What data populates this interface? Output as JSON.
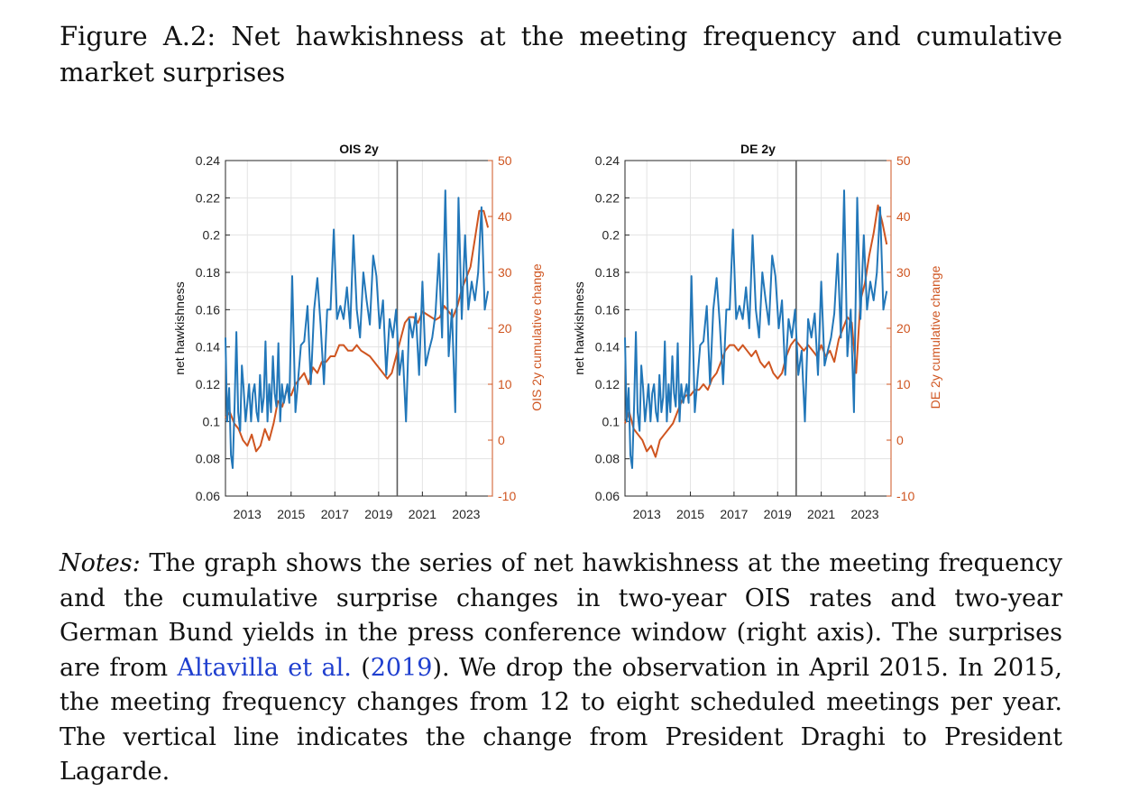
{
  "caption": {
    "text": "Figure A.2: Net hawkishness at the meeting frequency and cumulative market surprises"
  },
  "notes": {
    "label": "Notes:",
    "text1": "The graph shows the series of net hawkishness at the meeting frequency and the cumulative surprise changes in two-year OIS rates and two-year German Bund yields in the press conference window (right axis). The surprises are from",
    "cite_author": "Altavilla et al.",
    "cite_open": " (",
    "cite_year": "2019",
    "cite_close": ").",
    "text2": "We drop the observation in April 2015. In 2015, the meeting frequency changes from 12 to eight scheduled meetings per year. The vertical line indicates the change from President Draghi to President Lagarde."
  },
  "colors": {
    "blue": "#2277b9",
    "orange": "#cf5520",
    "grid": "#e3e3e3",
    "vline": "#5a5a5a"
  },
  "chart_data": [
    {
      "type": "line",
      "title": "OIS 2y",
      "ylabel_left": "net hawkishness",
      "ylabel_right": "OIS 2y cumulative change",
      "xlim": [
        2012,
        2024.2
      ],
      "ylim_left": [
        0.06,
        0.24
      ],
      "ylim_right": [
        -10,
        50
      ],
      "xticks": [
        2013,
        2015,
        2017,
        2019,
        2021,
        2023
      ],
      "yticks_left": [
        "0.06",
        "0.08",
        "0.1",
        "0.12",
        "0.14",
        "0.16",
        "0.18",
        "0.2",
        "0.22",
        "0.24"
      ],
      "yticks_right": [
        "-10",
        "0",
        "10",
        "20",
        "30",
        "40",
        "50"
      ],
      "grid": true,
      "vline_x": 2019.85,
      "series": [
        {
          "axis": "left",
          "x": [
            2012.0,
            2012.08,
            2012.17,
            2012.25,
            2012.33,
            2012.42,
            2012.5,
            2012.58,
            2012.67,
            2012.75,
            2012.83,
            2012.92,
            2013.0,
            2013.08,
            2013.17,
            2013.25,
            2013.33,
            2013.42,
            2013.5,
            2013.58,
            2013.67,
            2013.75,
            2013.83,
            2013.92,
            2014.0,
            2014.08,
            2014.17,
            2014.25,
            2014.33,
            2014.42,
            2014.5,
            2014.58,
            2014.67,
            2014.75,
            2014.83,
            2014.92,
            2015.05,
            2015.2,
            2015.45,
            2015.6,
            2015.75,
            2015.9,
            2016.05,
            2016.2,
            2016.35,
            2016.5,
            2016.65,
            2016.8,
            2016.95,
            2017.1,
            2017.25,
            2017.4,
            2017.55,
            2017.7,
            2017.85,
            2018.0,
            2018.15,
            2018.3,
            2018.45,
            2018.6,
            2018.75,
            2018.9,
            2019.05,
            2019.2,
            2019.35,
            2019.5,
            2019.65,
            2019.8,
            2019.95,
            2020.1,
            2020.25,
            2020.4,
            2020.55,
            2020.7,
            2020.85,
            2021.0,
            2021.15,
            2021.3,
            2021.45,
            2021.6,
            2021.75,
            2021.9,
            2022.05,
            2022.2,
            2022.35,
            2022.5,
            2022.65,
            2022.8,
            2022.95,
            2023.1,
            2023.25,
            2023.4,
            2023.55,
            2023.7,
            2023.85,
            2024.0
          ],
          "y": [
            0.145,
            0.1,
            0.118,
            0.082,
            0.075,
            0.11,
            0.148,
            0.105,
            0.095,
            0.13,
            0.118,
            0.1,
            0.11,
            0.12,
            0.1,
            0.115,
            0.12,
            0.105,
            0.1,
            0.125,
            0.105,
            0.113,
            0.143,
            0.1,
            0.12,
            0.105,
            0.135,
            0.115,
            0.108,
            0.142,
            0.1,
            0.12,
            0.11,
            0.115,
            0.12,
            0.11,
            0.178,
            0.105,
            0.141,
            0.143,
            0.162,
            0.12,
            0.16,
            0.177,
            0.152,
            0.12,
            0.16,
            0.16,
            0.203,
            0.155,
            0.162,
            0.155,
            0.172,
            0.15,
            0.2,
            0.16,
            0.145,
            0.18,
            0.165,
            0.152,
            0.189,
            0.178,
            0.15,
            0.165,
            0.125,
            0.155,
            0.145,
            0.16,
            0.125,
            0.138,
            0.1,
            0.155,
            0.145,
            0.158,
            0.125,
            0.175,
            0.13,
            0.138,
            0.145,
            0.158,
            0.19,
            0.145,
            0.224,
            0.135,
            0.16,
            0.105,
            0.22,
            0.155,
            0.2,
            0.16,
            0.175,
            0.165,
            0.18,
            0.215,
            0.16,
            0.17
          ]
        },
        {
          "axis": "right",
          "x": [
            2012.0,
            2012.2,
            2012.4,
            2012.6,
            2012.8,
            2013.0,
            2013.2,
            2013.4,
            2013.6,
            2013.8,
            2014.0,
            2014.2,
            2014.4,
            2014.6,
            2014.8,
            2015.0,
            2015.2,
            2015.4,
            2015.6,
            2015.8,
            2016.0,
            2016.2,
            2016.4,
            2016.6,
            2016.8,
            2017.0,
            2017.2,
            2017.4,
            2017.6,
            2017.8,
            2018.0,
            2018.2,
            2018.4,
            2018.6,
            2018.8,
            2019.0,
            2019.2,
            2019.4,
            2019.6,
            2019.8,
            2020.0,
            2020.2,
            2020.4,
            2020.6,
            2020.8,
            2021.0,
            2021.2,
            2021.4,
            2021.6,
            2021.8,
            2022.0,
            2022.2,
            2022.4,
            2022.6,
            2022.8,
            2023.0,
            2023.2,
            2023.4,
            2023.6,
            2023.8,
            2024.0
          ],
          "y": [
            4,
            5,
            3,
            2,
            0,
            -1,
            1,
            -2,
            -1,
            2,
            0,
            3,
            7,
            6,
            9,
            8,
            10,
            11,
            12,
            10,
            13,
            12,
            14,
            14,
            15,
            15,
            17,
            17,
            16,
            16,
            17,
            16,
            15.5,
            15,
            14,
            13,
            12,
            11,
            12,
            15,
            18,
            21,
            22,
            22,
            21,
            23,
            22.5,
            22,
            21.5,
            22,
            24,
            23,
            22,
            24,
            27,
            29,
            31,
            36,
            41,
            41,
            38
          ]
        }
      ]
    },
    {
      "type": "line",
      "title": "DE 2y",
      "ylabel_left": "net hawkishness",
      "ylabel_right": "DE 2y cumulative change",
      "xlim": [
        2012,
        2024.2
      ],
      "ylim_left": [
        0.06,
        0.24
      ],
      "ylim_right": [
        -10,
        50
      ],
      "xticks": [
        2013,
        2015,
        2017,
        2019,
        2021,
        2023
      ],
      "yticks_left": [
        "0.06",
        "0.08",
        "0.1",
        "0.12",
        "0.14",
        "0.16",
        "0.18",
        "0.2",
        "0.22",
        "0.24"
      ],
      "yticks_right": [
        "-10",
        "0",
        "10",
        "20",
        "30",
        "40",
        "50"
      ],
      "grid": true,
      "vline_x": 2019.85,
      "series": [
        {
          "axis": "left",
          "x": [
            2012.0,
            2012.08,
            2012.17,
            2012.25,
            2012.33,
            2012.42,
            2012.5,
            2012.58,
            2012.67,
            2012.75,
            2012.83,
            2012.92,
            2013.0,
            2013.08,
            2013.17,
            2013.25,
            2013.33,
            2013.42,
            2013.5,
            2013.58,
            2013.67,
            2013.75,
            2013.83,
            2013.92,
            2014.0,
            2014.08,
            2014.17,
            2014.25,
            2014.33,
            2014.42,
            2014.5,
            2014.58,
            2014.67,
            2014.75,
            2014.83,
            2014.92,
            2015.05,
            2015.2,
            2015.45,
            2015.6,
            2015.75,
            2015.9,
            2016.05,
            2016.2,
            2016.35,
            2016.5,
            2016.65,
            2016.8,
            2016.95,
            2017.1,
            2017.25,
            2017.4,
            2017.55,
            2017.7,
            2017.85,
            2018.0,
            2018.15,
            2018.3,
            2018.45,
            2018.6,
            2018.75,
            2018.9,
            2019.05,
            2019.2,
            2019.35,
            2019.5,
            2019.65,
            2019.8,
            2019.95,
            2020.1,
            2020.25,
            2020.4,
            2020.55,
            2020.7,
            2020.85,
            2021.0,
            2021.15,
            2021.3,
            2021.45,
            2021.6,
            2021.75,
            2021.9,
            2022.05,
            2022.2,
            2022.35,
            2022.5,
            2022.65,
            2022.8,
            2022.95,
            2023.1,
            2023.25,
            2023.4,
            2023.55,
            2023.7,
            2023.85,
            2024.0
          ],
          "y": [
            0.145,
            0.1,
            0.118,
            0.082,
            0.075,
            0.11,
            0.148,
            0.105,
            0.095,
            0.13,
            0.118,
            0.1,
            0.11,
            0.12,
            0.1,
            0.115,
            0.12,
            0.105,
            0.1,
            0.125,
            0.105,
            0.113,
            0.143,
            0.1,
            0.12,
            0.105,
            0.135,
            0.115,
            0.108,
            0.142,
            0.1,
            0.12,
            0.11,
            0.115,
            0.12,
            0.11,
            0.178,
            0.105,
            0.141,
            0.143,
            0.162,
            0.12,
            0.16,
            0.177,
            0.152,
            0.12,
            0.16,
            0.16,
            0.203,
            0.155,
            0.162,
            0.155,
            0.172,
            0.15,
            0.2,
            0.16,
            0.145,
            0.18,
            0.165,
            0.152,
            0.189,
            0.178,
            0.15,
            0.165,
            0.125,
            0.155,
            0.145,
            0.16,
            0.125,
            0.138,
            0.1,
            0.155,
            0.145,
            0.158,
            0.125,
            0.175,
            0.13,
            0.138,
            0.145,
            0.158,
            0.19,
            0.145,
            0.224,
            0.135,
            0.16,
            0.105,
            0.22,
            0.155,
            0.2,
            0.16,
            0.175,
            0.165,
            0.18,
            0.215,
            0.16,
            0.17
          ]
        },
        {
          "axis": "right",
          "x": [
            2012.0,
            2012.2,
            2012.4,
            2012.6,
            2012.8,
            2013.0,
            2013.2,
            2013.4,
            2013.6,
            2013.8,
            2014.0,
            2014.2,
            2014.4,
            2014.6,
            2014.8,
            2015.0,
            2015.2,
            2015.4,
            2015.6,
            2015.8,
            2016.0,
            2016.2,
            2016.4,
            2016.6,
            2016.8,
            2017.0,
            2017.2,
            2017.4,
            2017.6,
            2017.8,
            2018.0,
            2018.2,
            2018.4,
            2018.6,
            2018.8,
            2019.0,
            2019.2,
            2019.4,
            2019.6,
            2019.8,
            2020.0,
            2020.2,
            2020.4,
            2020.6,
            2020.8,
            2021.0,
            2021.2,
            2021.4,
            2021.6,
            2021.8,
            2022.0,
            2022.2,
            2022.4,
            2022.6,
            2022.8,
            2023.0,
            2023.2,
            2023.4,
            2023.6,
            2023.8,
            2024.0
          ],
          "y": [
            3,
            5,
            2,
            1,
            0,
            -2,
            -1,
            -3,
            0,
            1,
            2,
            3,
            5,
            7,
            8,
            8,
            9,
            9,
            10,
            9,
            11,
            12,
            14,
            16,
            17,
            17,
            16,
            17,
            16,
            15,
            16,
            14,
            13,
            14,
            12,
            11,
            12,
            15,
            17,
            18,
            17,
            16,
            17,
            16,
            15,
            17,
            15,
            16,
            14,
            18,
            20,
            22,
            21,
            12,
            25,
            28,
            33,
            37,
            42,
            39,
            35
          ]
        }
      ]
    }
  ]
}
